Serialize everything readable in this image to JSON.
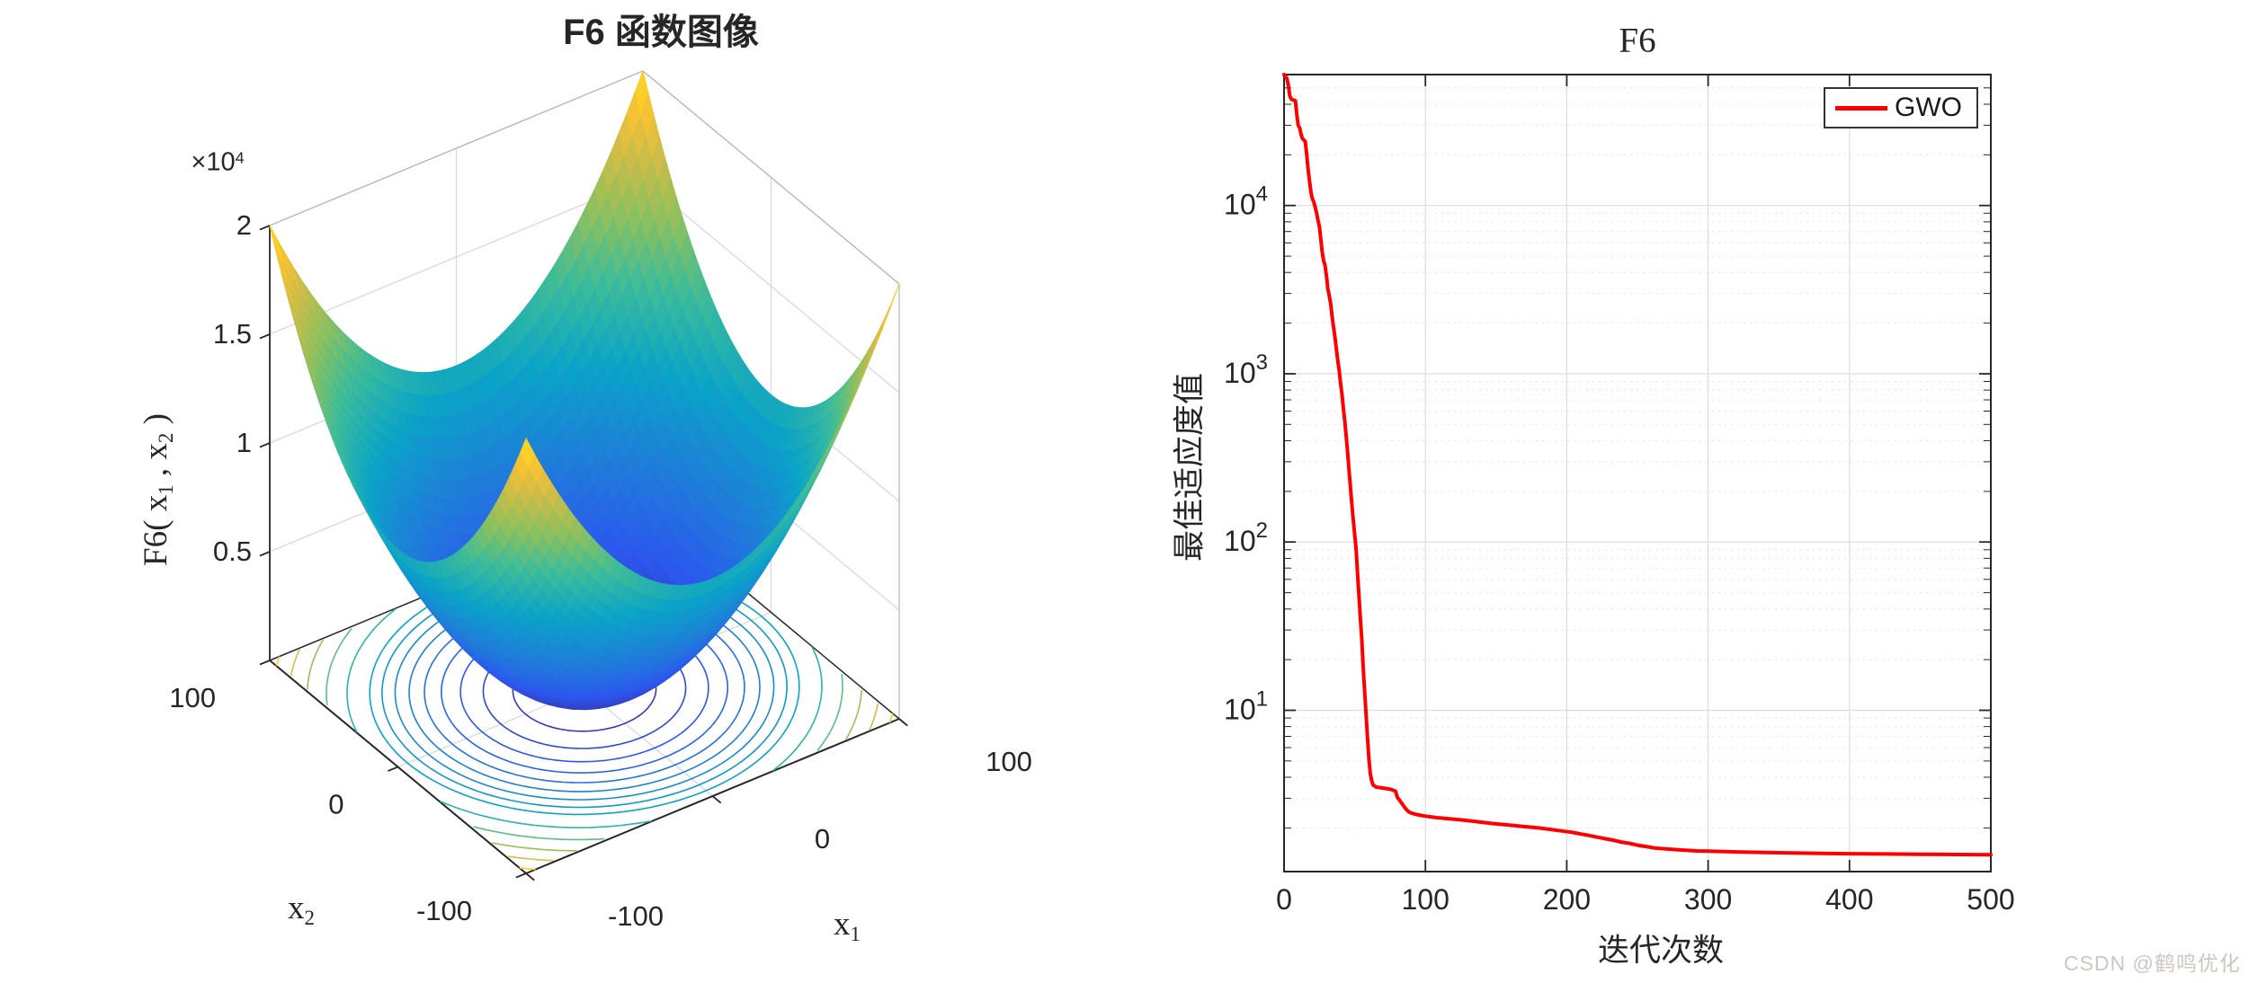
{
  "page": {
    "background": "#ffffff"
  },
  "watermark": {
    "text": "CSDN @鹤鸣优化",
    "color": "#cfc6c0"
  },
  "colors": {
    "axis": "#262626",
    "grid_major": "#dcdcdc",
    "grid_minor": "#e4e4e4",
    "wall_grid": "#d9d9d9",
    "box_light": "#b3b3b3",
    "curve_red": "#ff0000"
  },
  "chart_data": [
    {
      "type": "surface3d",
      "title": "F6 函数图像",
      "xlabel": {
        "base": "x",
        "sub": "1"
      },
      "ylabel": {
        "base": "x",
        "sub": "2"
      },
      "zlabel": {
        "pre": "F6( x",
        "sub1": "1",
        "mid": " , x",
        "sub2": "2",
        "post": " )"
      },
      "z_exponent": {
        "base": "×10",
        "sup": "4"
      },
      "x_range": [
        -100,
        100
      ],
      "y_range": [
        -100,
        100
      ],
      "z_range": [
        0,
        20000
      ],
      "x_ticks": [
        {
          "v": -100,
          "label": "-100"
        },
        {
          "v": 0,
          "label": "0"
        },
        {
          "v": 100,
          "label": "100"
        }
      ],
      "y_ticks": [
        {
          "v": -100,
          "label": "-100"
        },
        {
          "v": 0,
          "label": "0"
        },
        {
          "v": 100,
          "label": "100"
        }
      ],
      "z_ticks": [
        {
          "v": 5000,
          "label": "0.5"
        },
        {
          "v": 10000,
          "label": "1"
        },
        {
          "v": 15000,
          "label": "1.5"
        },
        {
          "v": 20000,
          "label": "2"
        }
      ],
      "surface_function": "z = x1^2 + x2^2",
      "grid_n": 46,
      "contour_levels": [
        1000,
        2000,
        3000,
        4000,
        5000,
        6000,
        7000,
        8000,
        9000,
        11000,
        13000,
        15000,
        17000,
        19000
      ],
      "colormap": "parula",
      "colormap_stops": [
        [
          0,
          "#3a2ba0"
        ],
        [
          0.15,
          "#2c57ee"
        ],
        [
          0.3,
          "#1e7fd8"
        ],
        [
          0.45,
          "#0aa3c8"
        ],
        [
          0.6,
          "#3cbc9a"
        ],
        [
          0.72,
          "#8ac05f"
        ],
        [
          0.85,
          "#d6bd45"
        ],
        [
          0.93,
          "#fbc32f"
        ],
        [
          1,
          "#f7e61b"
        ]
      ]
    },
    {
      "type": "line",
      "yscale": "log",
      "title": "F6",
      "xlabel": "迭代次数",
      "ylabel": "最佳适应度值",
      "xlim": [
        0,
        500
      ],
      "ylim": [
        1.1,
        60000
      ],
      "x_ticks": [
        {
          "v": 0,
          "label": "0"
        },
        {
          "v": 100,
          "label": "100"
        },
        {
          "v": 200,
          "label": "200"
        },
        {
          "v": 300,
          "label": "300"
        },
        {
          "v": 400,
          "label": "400"
        },
        {
          "v": 500,
          "label": "500"
        }
      ],
      "y_ticks": [
        {
          "v": 10,
          "base": "10",
          "exp": "1"
        },
        {
          "v": 100,
          "base": "10",
          "exp": "2"
        },
        {
          "v": 1000,
          "base": "10",
          "exp": "3"
        },
        {
          "v": 10000,
          "base": "10",
          "exp": "4"
        }
      ],
      "grid": {
        "major": true,
        "minor_dotted": true
      },
      "legend": {
        "position": "top-right",
        "entries": [
          {
            "label": "GWO",
            "color": "#ff0000"
          }
        ]
      },
      "series": [
        {
          "name": "GWO",
          "color": "#ff0000",
          "points": [
            [
              0,
              60000
            ],
            [
              2,
              57000
            ],
            [
              3,
              52000
            ],
            [
              4,
              45000
            ],
            [
              5,
              43000
            ],
            [
              6,
              42500
            ],
            [
              8,
              42000
            ],
            [
              9,
              35000
            ],
            [
              10,
              30000
            ],
            [
              11,
              29000
            ],
            [
              12,
              26500
            ],
            [
              13,
              25000
            ],
            [
              14,
              24500
            ],
            [
              15,
              24000
            ],
            [
              16,
              20000
            ],
            [
              17,
              16500
            ],
            [
              18,
              14000
            ],
            [
              19,
              12000
            ],
            [
              20,
              11000
            ],
            [
              21,
              10500
            ],
            [
              22,
              9800
            ],
            [
              23,
              9000
            ],
            [
              24,
              8200
            ],
            [
              25,
              7500
            ],
            [
              26,
              6300
            ],
            [
              27,
              5300
            ],
            [
              28,
              4700
            ],
            [
              29,
              4400
            ],
            [
              30,
              3800
            ],
            [
              31,
              3200
            ],
            [
              32,
              2900
            ],
            [
              33,
              2600
            ],
            [
              34,
              2200
            ],
            [
              35,
              1900
            ],
            [
              36,
              1650
            ],
            [
              37,
              1400
            ],
            [
              38,
              1200
            ],
            [
              39,
              1050
            ],
            [
              40,
              870
            ],
            [
              41,
              750
            ],
            [
              42,
              620
            ],
            [
              43,
              520
            ],
            [
              44,
              420
            ],
            [
              45,
              340
            ],
            [
              46,
              265
            ],
            [
              47,
              210
            ],
            [
              48,
              165
            ],
            [
              49,
              135
            ],
            [
              50,
              110
            ],
            [
              51,
              90
            ],
            [
              52,
              65
            ],
            [
              53,
              48
            ],
            [
              54,
              35
            ],
            [
              55,
              26
            ],
            [
              56,
              18
            ],
            [
              57,
              13
            ],
            [
              58,
              9.5
            ],
            [
              59,
              7
            ],
            [
              60,
              5.2
            ],
            [
              61,
              4.2
            ],
            [
              62,
              3.8
            ],
            [
              63,
              3.6
            ],
            [
              65,
              3.5
            ],
            [
              68,
              3.47
            ],
            [
              72,
              3.43
            ],
            [
              76,
              3.38
            ],
            [
              79,
              3.3
            ],
            [
              80,
              3.05
            ],
            [
              82,
              2.9
            ],
            [
              84,
              2.75
            ],
            [
              86,
              2.6
            ],
            [
              88,
              2.5
            ],
            [
              90,
              2.45
            ],
            [
              94,
              2.4
            ],
            [
              100,
              2.35
            ],
            [
              108,
              2.3
            ],
            [
              116,
              2.27
            ],
            [
              124,
              2.24
            ],
            [
              132,
              2.2
            ],
            [
              140,
              2.16
            ],
            [
              148,
              2.12
            ],
            [
              156,
              2.09
            ],
            [
              164,
              2.06
            ],
            [
              172,
              2.03
            ],
            [
              180,
              2.0
            ],
            [
              188,
              1.96
            ],
            [
              196,
              1.92
            ],
            [
              204,
              1.88
            ],
            [
              210,
              1.84
            ],
            [
              216,
              1.8
            ],
            [
              222,
              1.76
            ],
            [
              228,
              1.72
            ],
            [
              233,
              1.69
            ],
            [
              238,
              1.65
            ],
            [
              244,
              1.62
            ],
            [
              250,
              1.58
            ],
            [
              256,
              1.55
            ],
            [
              262,
              1.52
            ],
            [
              270,
              1.5
            ],
            [
              280,
              1.48
            ],
            [
              292,
              1.46
            ],
            [
              306,
              1.45
            ],
            [
              320,
              1.44
            ],
            [
              340,
              1.43
            ],
            [
              360,
              1.42
            ],
            [
              380,
              1.41
            ],
            [
              400,
              1.405
            ],
            [
              425,
              1.4
            ],
            [
              450,
              1.395
            ],
            [
              475,
              1.39
            ],
            [
              500,
              1.385
            ]
          ]
        }
      ]
    }
  ]
}
